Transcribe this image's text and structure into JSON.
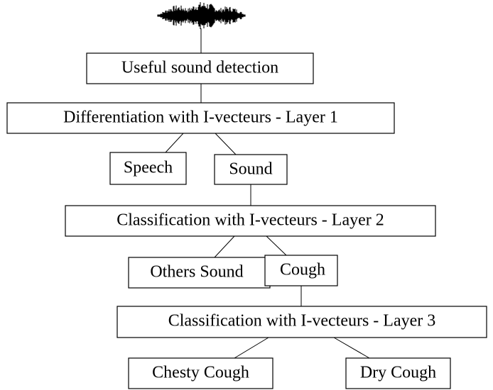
{
  "nodes": [
    {
      "label": "Useful sound detection"
    },
    {
      "label": "Differentiation with I-vecteurs - Layer 1"
    },
    {
      "label": "Speech"
    },
    {
      "label": "Sound"
    },
    {
      "label": "Classification with I-vecteurs - Layer 2"
    },
    {
      "label": "Others Sound"
    },
    {
      "label": "Cough"
    },
    {
      "label": "Classification with I-vecteurs - Layer 3"
    },
    {
      "label": "Chesty Cough"
    },
    {
      "label": "Dry Cough"
    }
  ]
}
